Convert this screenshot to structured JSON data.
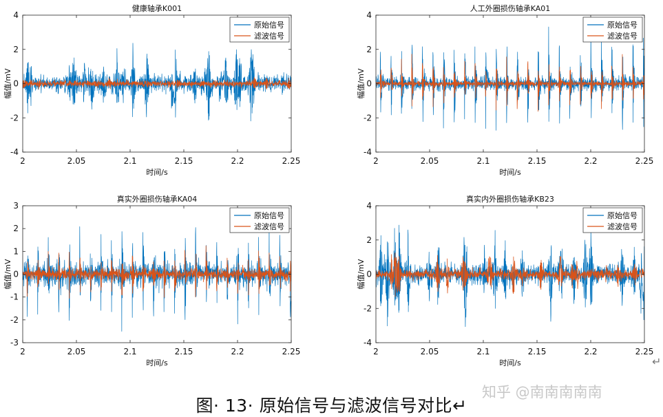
{
  "figure": {
    "caption": "图· 13· 原始信号与滤波信号对比↵",
    "watermark": "知乎 @南南南南南",
    "return_mark": "↵"
  },
  "colors": {
    "raw": "#0072BD",
    "filtered": "#D95319",
    "axis": "#262626"
  },
  "chart_data": [
    {
      "type": "line",
      "title": "健康轴承K001",
      "xlabel": "时间/s",
      "ylabel": "幅值/mV",
      "xlim": [
        2,
        2.25
      ],
      "ylim": [
        -4,
        4
      ],
      "xticks": [
        2,
        2.05,
        2.1,
        2.15,
        2.2,
        2.25
      ],
      "xticklabels": [
        "2",
        "2.05",
        "2.1",
        "2.15",
        "2.2",
        "2.25"
      ],
      "yticks": [
        -4,
        -2,
        0,
        2,
        4
      ],
      "legend_position": "top-right",
      "grid": false,
      "series": [
        {
          "name": "原始信号",
          "color": "#0072BD",
          "noise_amplitude": 0.45,
          "peak_amplitude": 2.6,
          "impulse_period_s": null
        },
        {
          "name": "滤波信号",
          "color": "#D95319",
          "noise_amplitude": 0.15,
          "peak_amplitude": 0.3,
          "impulse_period_s": null
        }
      ]
    },
    {
      "type": "line",
      "title": "人工外圈损伤轴承KA01",
      "xlabel": "时间/s",
      "ylabel": "幅值/mV",
      "xlim": [
        2,
        2.25
      ],
      "ylim": [
        -4,
        4
      ],
      "xticks": [
        2,
        2.05,
        2.1,
        2.15,
        2.2,
        2.25
      ],
      "xticklabels": [
        "2",
        "2.05",
        "2.1",
        "2.15",
        "2.2",
        "2.25"
      ],
      "yticks": [
        -4,
        -2,
        0,
        2,
        4
      ],
      "legend_position": "top-right",
      "grid": false,
      "series": [
        {
          "name": "原始信号",
          "color": "#0072BD",
          "noise_amplitude": 0.35,
          "peak_amplitude": 3.5,
          "impulse_period_s": 0.0098
        },
        {
          "name": "滤波信号",
          "color": "#D95319",
          "noise_amplitude": 0.12,
          "peak_amplitude": 1.8,
          "impulse_period_s": 0.0098
        }
      ]
    },
    {
      "type": "line",
      "title": "真实外圈损伤轴承KA04",
      "xlabel": "时间/s",
      "ylabel": "幅值/mV",
      "xlim": [
        2,
        2.25
      ],
      "ylim": [
        -3,
        3
      ],
      "xticks": [
        2,
        2.05,
        2.1,
        2.15,
        2.2,
        2.25
      ],
      "xticklabels": [
        "2",
        "2.05",
        "2.1",
        "2.15",
        "2.2",
        "2.25"
      ],
      "yticks": [
        -3,
        -2,
        -1,
        0,
        1,
        2,
        3
      ],
      "legend_position": "top-right",
      "grid": false,
      "series": [
        {
          "name": "原始信号",
          "color": "#0072BD",
          "noise_amplitude": 0.45,
          "peak_amplitude": 2.5,
          "impulse_period_s": 0.0098
        },
        {
          "name": "滤波信号",
          "color": "#D95319",
          "noise_amplitude": 0.2,
          "peak_amplitude": 1.2,
          "impulse_period_s": 0.0098
        }
      ]
    },
    {
      "type": "line",
      "title": "真实内外圈损伤轴承KB23",
      "xlabel": "时间/s",
      "ylabel": "幅值/mV",
      "xlim": [
        2,
        2.25
      ],
      "ylim": [
        -4,
        4
      ],
      "xticks": [
        2,
        2.05,
        2.1,
        2.15,
        2.2,
        2.25
      ],
      "xticklabels": [
        "2",
        "2.05",
        "2.1",
        "2.15",
        "2.2",
        "2.25"
      ],
      "yticks": [
        -4,
        -2,
        0,
        2,
        4
      ],
      "legend_position": "top-right",
      "grid": false,
      "series": [
        {
          "name": "原始信号",
          "color": "#0072BD",
          "noise_amplitude": 0.5,
          "peak_amplitude": 3.4,
          "impulse_period_s": null
        },
        {
          "name": "滤波信号",
          "color": "#D95319",
          "noise_amplitude": 0.25,
          "peak_amplitude": 1.2,
          "impulse_period_s": null
        }
      ]
    }
  ]
}
